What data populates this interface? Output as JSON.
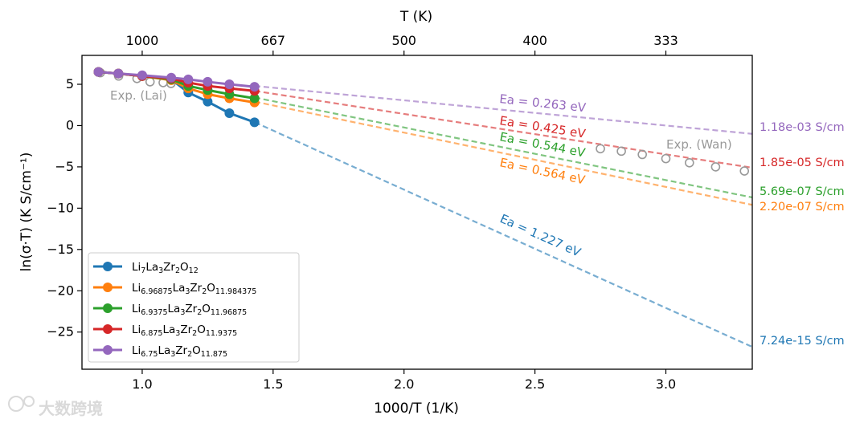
{
  "chart_data": {
    "type": "line",
    "xlabel": "1000/T (1/K)",
    "ylabel": "ln(σ·T) (K S/cm⁻¹)",
    "top_axis_label": "T (K)",
    "xlim": [
      0.77,
      3.33
    ],
    "ylim": [
      -29.5,
      8.5
    ],
    "x_ticks": [
      "1.0",
      "1.5",
      "2.0",
      "2.5",
      "3.0"
    ],
    "x_tick_values": [
      1.0,
      1.5,
      2.0,
      2.5,
      3.0
    ],
    "y_ticks": [
      "5",
      "0",
      "−5",
      "−10",
      "−15",
      "−20",
      "−25"
    ],
    "y_tick_values": [
      5,
      0,
      -5,
      -10,
      -15,
      -20,
      -25
    ],
    "top_ticks": [
      "1000",
      "667",
      "500",
      "400",
      "333"
    ],
    "top_tick_values": [
      1.0,
      1.5,
      2.0,
      2.5,
      3.0
    ],
    "legend_position": "lower-left",
    "series": [
      {
        "name": "Li7La3Zr2O12",
        "color": "#1f77b4",
        "x": [
          0.833,
          0.909,
          1.0,
          1.111,
          1.176,
          1.25,
          1.333,
          1.429
        ],
        "y": [
          6.5,
          6.3,
          6.0,
          5.6,
          4.0,
          2.9,
          1.5,
          0.4
        ],
        "fit_x": [
          1.43,
          3.33
        ],
        "fit_y": [
          0.4,
          -26.8
        ],
        "ea_label": "Ea = 1.227 eV",
        "rt_label": "7.24e-15 S/cm"
      },
      {
        "name": "Li6.96875La3Zr2O11.984375",
        "color": "#ff7f0e",
        "x": [
          0.833,
          0.909,
          1.0,
          1.111,
          1.176,
          1.25,
          1.333,
          1.429
        ],
        "y": [
          6.5,
          6.3,
          6.0,
          5.5,
          4.5,
          3.8,
          3.3,
          2.8
        ],
        "fit_x": [
          1.43,
          3.33
        ],
        "fit_y": [
          2.9,
          -9.6
        ],
        "ea_label": "Ea = 0.564 eV",
        "rt_label": "2.20e-07 S/cm"
      },
      {
        "name": "Li6.9375La3Zr2O11.96875",
        "color": "#2ca02c",
        "x": [
          0.833,
          0.909,
          1.0,
          1.111,
          1.176,
          1.25,
          1.333,
          1.429
        ],
        "y": [
          6.5,
          6.3,
          6.0,
          5.6,
          4.8,
          4.3,
          3.8,
          3.3
        ],
        "fit_x": [
          1.43,
          3.33
        ],
        "fit_y": [
          3.4,
          -8.7
        ],
        "ea_label": "Ea = 0.544 eV",
        "rt_label": "5.69e-07 S/cm"
      },
      {
        "name": "Li6.875La3Zr2O11.9375",
        "color": "#d62728",
        "x": [
          0.833,
          0.909,
          1.0,
          1.111,
          1.176,
          1.25,
          1.333,
          1.429
        ],
        "y": [
          6.5,
          6.3,
          6.0,
          5.7,
          5.2,
          4.8,
          4.5,
          4.2
        ],
        "fit_x": [
          1.43,
          3.33
        ],
        "fit_y": [
          4.2,
          -5.1
        ],
        "ea_label": "Ea = 0.425 eV",
        "rt_label": "1.85e-05 S/cm"
      },
      {
        "name": "Li6.75La3Zr2O11.875",
        "color": "#9467bd",
        "x": [
          0.833,
          0.909,
          1.0,
          1.111,
          1.176,
          1.25,
          1.333,
          1.429
        ],
        "y": [
          6.5,
          6.3,
          6.1,
          5.8,
          5.6,
          5.3,
          5.0,
          4.7
        ],
        "fit_x": [
          1.43,
          3.33
        ],
        "fit_y": [
          4.8,
          -1.0
        ],
        "ea_label": "Ea = 0.263 eV",
        "rt_label": "1.18e-03 S/cm"
      }
    ],
    "experimental": [
      {
        "name": "Exp. (Lai)",
        "color": "#999999",
        "x": [
          0.84,
          0.91,
          0.98,
          1.03,
          1.08,
          1.11
        ],
        "y": [
          6.4,
          6.0,
          5.7,
          5.3,
          5.2,
          5.1
        ]
      },
      {
        "name": "Exp. (Wan)",
        "color": "#999999",
        "x": [
          2.75,
          2.83,
          2.91,
          3.0,
          3.09,
          3.19,
          3.3
        ],
        "y": [
          -2.8,
          -3.1,
          -3.5,
          -4.0,
          -4.5,
          -5.0,
          -5.5
        ]
      }
    ]
  },
  "watermark": "大数跨境"
}
